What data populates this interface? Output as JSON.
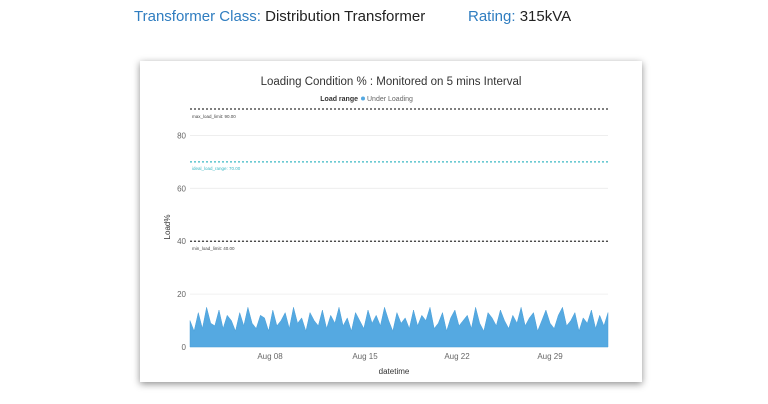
{
  "header": {
    "class_label": "Transformer Class:",
    "class_value": "Distribution Transformer",
    "rating_label": "Rating:",
    "rating_value": "315kVA"
  },
  "chart_data": {
    "type": "area",
    "title": "Loading Condition % : Monitored on 5 mins Interval",
    "legend_title": "Load range",
    "legend_placement": "top-center",
    "series": [
      {
        "name": "Under Loading",
        "color": "#55a9e1",
        "x_start": "Aug 3",
        "x_end": "Sep 3",
        "interval": "5 mins",
        "values": [
          10,
          6,
          13,
          7,
          15,
          9,
          8,
          14,
          7,
          12,
          10,
          6,
          13,
          8,
          15,
          9,
          7,
          12,
          11,
          6,
          14,
          8,
          10,
          13,
          7,
          15,
          9,
          11,
          6,
          13,
          10,
          8,
          14,
          7,
          12,
          9,
          15,
          8,
          11,
          6,
          13,
          10,
          7,
          14,
          9,
          12,
          8,
          15,
          10,
          6,
          13,
          9,
          11,
          7,
          14,
          8,
          12,
          10,
          15,
          7,
          9,
          13,
          6,
          11,
          14,
          8,
          10,
          12,
          7,
          15,
          9,
          6,
          13,
          11,
          8,
          14,
          10,
          7,
          12,
          9,
          15,
          8,
          11,
          13,
          6,
          10,
          14,
          9,
          7,
          12,
          15,
          8,
          10,
          13,
          6,
          11,
          9,
          14,
          7,
          12,
          8,
          13
        ]
      }
    ],
    "xlabel": "datetime",
    "ylabel": "Load%",
    "x_ticks": [
      "Aug 08",
      "Aug 15",
      "Aug 22",
      "Aug 29"
    ],
    "y_ticks": [
      0,
      20,
      40,
      60,
      80
    ],
    "ylim": [
      0,
      90
    ],
    "grid": true,
    "reference_lines": [
      {
        "label": "max_load_limit: 90.00",
        "value": 90,
        "color": "#333333"
      },
      {
        "label": "ideal_load_range: 70.00",
        "value": 70,
        "color": "#3bb8c4"
      },
      {
        "label": "min_load_limit: 40.00",
        "value": 40,
        "color": "#333333"
      }
    ]
  }
}
